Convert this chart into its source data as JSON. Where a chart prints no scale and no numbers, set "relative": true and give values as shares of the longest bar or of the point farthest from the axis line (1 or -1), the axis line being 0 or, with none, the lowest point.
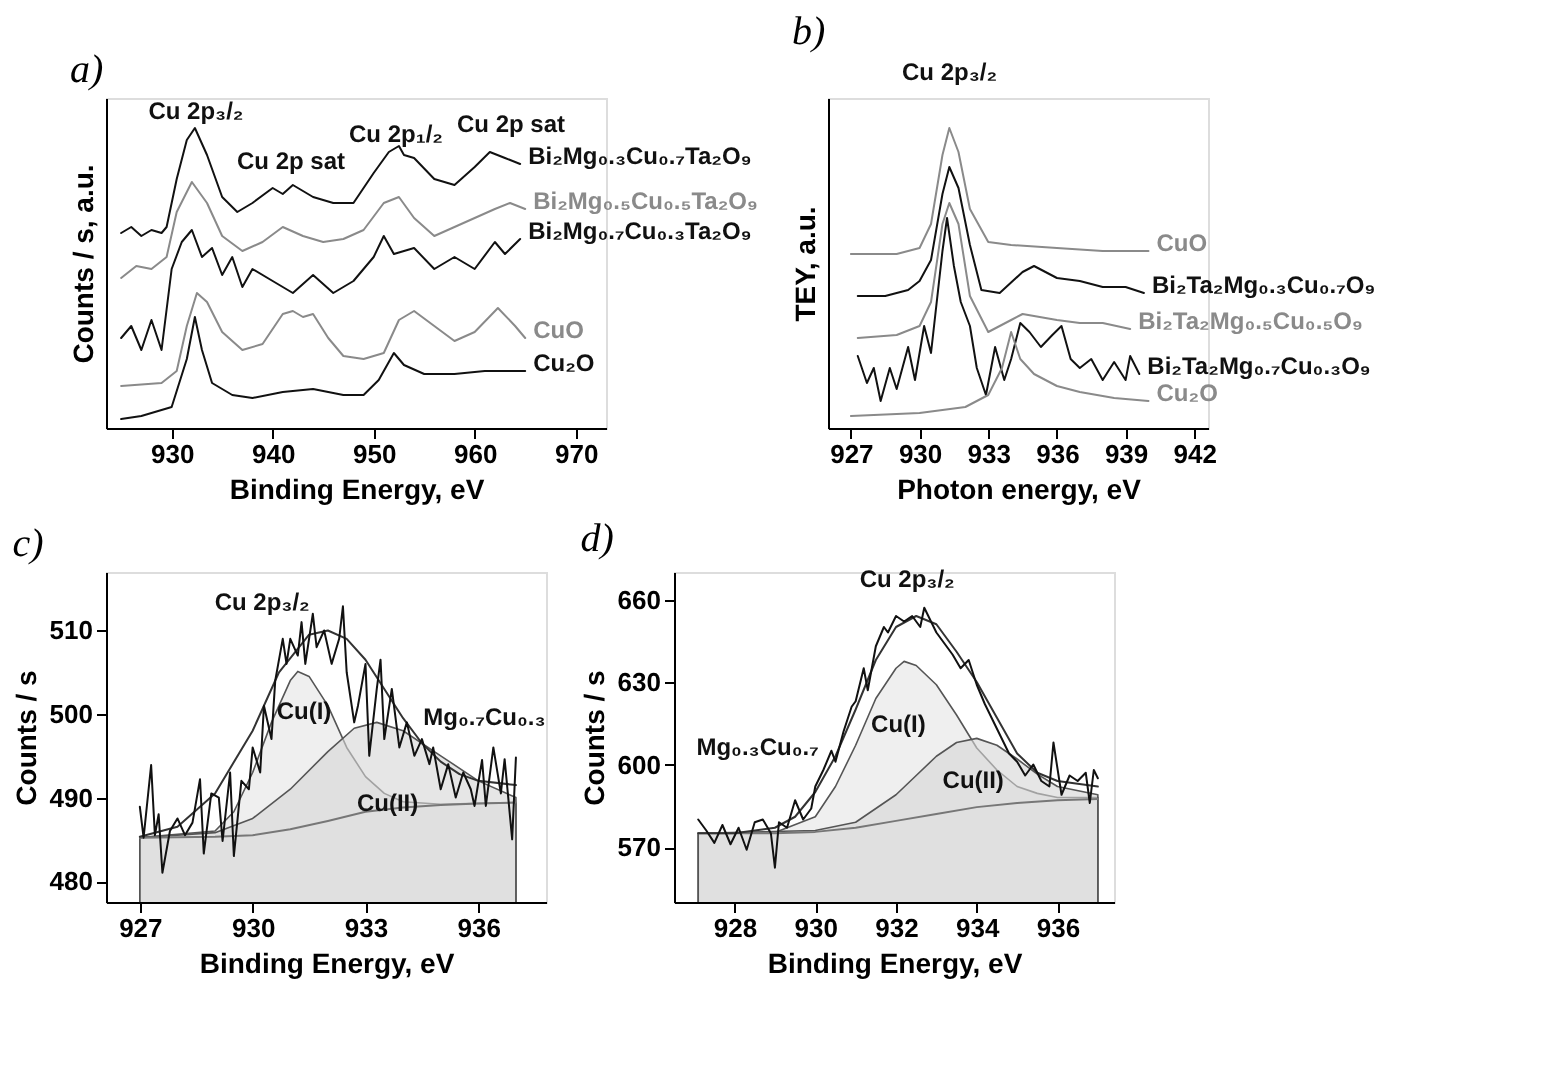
{
  "chart_data": [
    {
      "type": "line",
      "title": "a)",
      "xlabel": "Binding Energy, eV",
      "ylabel": "Counts / s, a.u.",
      "relative": true,
      "xlim": [
        923.5,
        973
      ],
      "xticks": [
        930,
        940,
        950,
        960,
        970
      ],
      "series": [
        {
          "name": "Bi₂Mg₀.₃Cu₀.₇Ta₂O₉",
          "color": "#111111",
          "x": [
            925,
            926,
            927,
            928,
            929,
            929.5,
            930.5,
            931.5,
            932.3,
            933.5,
            935,
            936.5,
            938,
            940,
            941,
            942,
            943,
            944,
            946,
            948,
            950,
            951.5,
            952.5,
            953,
            954,
            956,
            958,
            960,
            961.5,
            963,
            964.5
          ],
          "values": [
            0.65,
            0.67,
            0.64,
            0.66,
            0.65,
            0.67,
            0.83,
            0.96,
            1.0,
            0.91,
            0.77,
            0.72,
            0.75,
            0.8,
            0.78,
            0.81,
            0.79,
            0.77,
            0.75,
            0.75,
            0.85,
            0.92,
            0.94,
            0.91,
            0.9,
            0.83,
            0.81,
            0.87,
            0.92,
            0.9,
            0.88
          ]
        },
        {
          "name": "Bi₂Mg₀.₅Cu₀.₅Ta₂O₉",
          "color": "#8a8a8a",
          "x": [
            925,
            926.5,
            928,
            929.5,
            930.5,
            932,
            933.5,
            935,
            937,
            939,
            941,
            943,
            945,
            947,
            949,
            951,
            952.5,
            954,
            956,
            958,
            960,
            962,
            963.5,
            965
          ],
          "values": [
            0.5,
            0.54,
            0.53,
            0.57,
            0.72,
            0.82,
            0.75,
            0.64,
            0.59,
            0.62,
            0.67,
            0.64,
            0.62,
            0.63,
            0.66,
            0.75,
            0.77,
            0.7,
            0.64,
            0.67,
            0.7,
            0.73,
            0.75,
            0.73
          ]
        },
        {
          "name": "Bi₂Mg₀.₇Cu₀.₃Ta₂O₉",
          "color": "#111111",
          "x": [
            925,
            926,
            927,
            928,
            929,
            930,
            931,
            932,
            933,
            934,
            935,
            936,
            937,
            938,
            940,
            942,
            944,
            946,
            948,
            950,
            951,
            952,
            954,
            956,
            958,
            960,
            962,
            963,
            964.5
          ],
          "values": [
            0.3,
            0.34,
            0.26,
            0.36,
            0.26,
            0.53,
            0.62,
            0.66,
            0.57,
            0.6,
            0.51,
            0.57,
            0.47,
            0.53,
            0.49,
            0.45,
            0.51,
            0.45,
            0.49,
            0.57,
            0.64,
            0.58,
            0.6,
            0.53,
            0.57,
            0.53,
            0.62,
            0.58,
            0.63
          ]
        },
        {
          "name": "CuO",
          "color": "#8a8a8a",
          "x": [
            925,
            929,
            930.5,
            931.5,
            932.5,
            933.5,
            935,
            937,
            939,
            941,
            942,
            943,
            944,
            945.5,
            947,
            949,
            951,
            952.5,
            954,
            956,
            958,
            960,
            962.3,
            964,
            965
          ],
          "values": [
            0.14,
            0.15,
            0.19,
            0.34,
            0.45,
            0.42,
            0.32,
            0.26,
            0.28,
            0.38,
            0.39,
            0.37,
            0.38,
            0.3,
            0.24,
            0.23,
            0.25,
            0.36,
            0.39,
            0.34,
            0.29,
            0.32,
            0.4,
            0.34,
            0.3
          ]
        },
        {
          "name": "Cu₂O",
          "color": "#111111",
          "x": [
            925,
            927,
            930,
            931.5,
            932.3,
            933,
            934,
            936,
            938,
            941,
            944,
            947,
            949,
            950.5,
            952,
            953,
            955,
            958,
            961,
            965
          ],
          "values": [
            0.03,
            0.04,
            0.07,
            0.23,
            0.37,
            0.26,
            0.15,
            0.11,
            0.1,
            0.12,
            0.13,
            0.11,
            0.11,
            0.16,
            0.25,
            0.21,
            0.18,
            0.18,
            0.19,
            0.19
          ]
        }
      ],
      "annotations": [
        "Cu 2p₃/₂",
        "Cu 2p sat",
        "Cu 2p₁/₂",
        "Cu 2p sat"
      ]
    },
    {
      "type": "line",
      "title": "b)",
      "xlabel": "Photon energy, eV",
      "ylabel": "TEY, a.u.",
      "relative": true,
      "xlim": [
        926,
        942.6
      ],
      "xticks": [
        927,
        930,
        933,
        936,
        939,
        942
      ],
      "series": [
        {
          "name": "CuO",
          "color": "#8a8a8a",
          "x": [
            927,
            929,
            930,
            930.5,
            931,
            931.3,
            931.7,
            932.2,
            933,
            934,
            936,
            938,
            940
          ],
          "values": [
            0.58,
            0.58,
            0.6,
            0.68,
            0.91,
            1.0,
            0.92,
            0.73,
            0.62,
            0.61,
            0.6,
            0.59,
            0.59
          ]
        },
        {
          "name": "Bi₂Ta₂Mg₀.₃Cu₀.₇O₉",
          "color": "#111111",
          "x": [
            927.3,
            928.5,
            929.5,
            930,
            930.5,
            931,
            931.3,
            931.7,
            932.2,
            932.7,
            933.5,
            934.5,
            935,
            936,
            937,
            938,
            939,
            939.8
          ],
          "values": [
            0.44,
            0.44,
            0.46,
            0.49,
            0.56,
            0.78,
            0.87,
            0.8,
            0.61,
            0.46,
            0.45,
            0.52,
            0.54,
            0.5,
            0.49,
            0.47,
            0.47,
            0.45
          ]
        },
        {
          "name": "Bi₂Ta₂Mg₀.₅Cu₀.₅O₉",
          "color": "#8a8a8a",
          "x": [
            927.3,
            929,
            930,
            930.5,
            931,
            931.3,
            931.7,
            932.2,
            933,
            934,
            934.5,
            936,
            937,
            938,
            939.2
          ],
          "values": [
            0.3,
            0.31,
            0.34,
            0.42,
            0.68,
            0.75,
            0.68,
            0.44,
            0.32,
            0.36,
            0.38,
            0.36,
            0.35,
            0.35,
            0.33
          ]
        },
        {
          "name": "Bi₂Ta₂Mg₀.₇Cu₀.₃O₉",
          "color": "#111111",
          "x": [
            927.3,
            927.7,
            928,
            928.3,
            928.7,
            929,
            929.5,
            929.8,
            930.2,
            930.5,
            931,
            931.2,
            931.5,
            931.8,
            932.2,
            932.5,
            932.9,
            933.3,
            933.7,
            934,
            934.4,
            934.8,
            935.3,
            935.8,
            936.2,
            936.6,
            937,
            937.5,
            938,
            938.5,
            939,
            939.2,
            939.6
          ],
          "values": [
            0.24,
            0.15,
            0.2,
            0.09,
            0.2,
            0.13,
            0.27,
            0.16,
            0.34,
            0.25,
            0.59,
            0.7,
            0.54,
            0.42,
            0.34,
            0.2,
            0.11,
            0.27,
            0.16,
            0.23,
            0.35,
            0.32,
            0.27,
            0.31,
            0.34,
            0.23,
            0.2,
            0.23,
            0.16,
            0.22,
            0.16,
            0.24,
            0.18
          ]
        },
        {
          "name": "Cu₂O",
          "color": "#8a8a8a",
          "x": [
            927,
            930,
            932,
            933,
            933.6,
            934,
            934.4,
            935,
            936,
            937,
            938.5,
            940
          ],
          "values": [
            0.04,
            0.05,
            0.07,
            0.11,
            0.2,
            0.32,
            0.23,
            0.18,
            0.14,
            0.12,
            0.1,
            0.09
          ]
        }
      ],
      "annotations": [
        "Cu 2p₃/₂"
      ]
    },
    {
      "type": "line",
      "title": "c)",
      "xlabel": "Binding Energy, eV",
      "ylabel": "Counts / s",
      "xlim": [
        926.1,
        937.8
      ],
      "xticks": [
        927,
        930,
        933,
        936
      ],
      "ylim": [
        477.5,
        517
      ],
      "yticks": [
        480,
        490,
        500,
        510
      ],
      "series": [
        {
          "type": "area",
          "color": "#efefef",
          "x": [
            927,
            929,
            929.5,
            930,
            930.5,
            931,
            931.2,
            931.5,
            932,
            932.5,
            933,
            933.5,
            934,
            935,
            936,
            937
          ],
          "values": [
            485.2,
            486,
            488.3,
            493,
            499,
            504,
            505.1,
            504.5,
            501,
            496,
            492.5,
            490.5,
            489.5,
            489.2,
            489.3,
            489.4
          ]
        },
        {
          "type": "area",
          "color": "#d6d6d6",
          "x": [
            927,
            929,
            930,
            931,
            932,
            932.7,
            933.3,
            934,
            935,
            936,
            937
          ],
          "values": [
            485.2,
            485.8,
            487.5,
            491,
            495.5,
            498.3,
            499,
            498,
            495,
            492,
            490
          ]
        },
        {
          "color": "#777777",
          "x": [
            927,
            929,
            930,
            931,
            932,
            933,
            934,
            935,
            936,
            937
          ],
          "values": [
            485.2,
            485.3,
            485.5,
            486.2,
            487.2,
            488.3,
            488.8,
            489.1,
            489.3,
            489.4
          ]
        },
        {
          "color": "#333333",
          "x": [
            927,
            928,
            929,
            930,
            930.7,
            931.5,
            932,
            932.5,
            933,
            933.5,
            934,
            934.5,
            935,
            935.5,
            936,
            937
          ],
          "values": [
            485.3,
            486.5,
            490.5,
            498,
            505,
            509.5,
            510,
            509,
            506.5,
            503,
            499.5,
            496.5,
            494.3,
            492.8,
            492,
            491.5
          ]
        },
        {
          "color": "#111111",
          "x": [
            927.0,
            927.1,
            927.3,
            927.4,
            927.5,
            927.6,
            927.8,
            928.0,
            928.2,
            928.4,
            928.6,
            928.7,
            928.9,
            929.1,
            929.2,
            929.4,
            929.5,
            929.7,
            929.9,
            930.0,
            930.2,
            930.3,
            930.5,
            930.6,
            930.8,
            930.9,
            931.0,
            931.2,
            931.3,
            931.4,
            931.6,
            931.7,
            931.9,
            932.1,
            932.3,
            932.4,
            932.5,
            932.7,
            932.8,
            933.0,
            933.1,
            933.3,
            933.4,
            933.5,
            933.7,
            933.9,
            934.1,
            934.3,
            934.5,
            934.7,
            934.8,
            935.0,
            935.2,
            935.4,
            935.6,
            935.8,
            935.9,
            936.1,
            936.2,
            936.4,
            936.6,
            936.7,
            936.9,
            937.0
          ],
          "values": [
            488.9,
            485.2,
            493.9,
            485.5,
            488,
            481,
            486,
            487.5,
            485.5,
            487,
            492.2,
            483.3,
            490.5,
            490,
            484.8,
            493,
            483,
            492,
            491,
            496,
            493,
            501,
            497,
            504,
            509,
            506,
            509,
            507,
            511,
            506,
            512,
            508,
            510,
            506,
            509,
            512.9,
            505,
            499,
            501,
            506,
            495,
            503,
            506.5,
            497,
            503,
            496,
            499,
            495,
            497,
            494,
            496,
            491,
            494,
            490,
            493,
            491,
            489,
            494.5,
            489,
            496,
            490.5,
            494.6,
            485,
            494.8
          ]
        }
      ],
      "annotations": [
        "Cu 2p₃/₂",
        "Cu(I)",
        "Cu(II)",
        "Mg₀.₇Cu₀.₃"
      ]
    },
    {
      "type": "line",
      "title": "d)",
      "xlabel": "Binding Energy, eV",
      "ylabel": "Counts / s",
      "xlim": [
        926.5,
        937.4
      ],
      "xticks": [
        928,
        930,
        932,
        934,
        936
      ],
      "ylim": [
        550,
        670
      ],
      "yticks": [
        570,
        600,
        630,
        660
      ],
      "series": [
        {
          "type": "area",
          "color": "#efefef",
          "x": [
            927.1,
            929,
            930,
            930.5,
            931,
            931.5,
            932,
            932.2,
            932.5,
            933,
            933.5,
            934,
            934.5,
            935,
            935.5,
            936,
            937
          ],
          "values": [
            575,
            575.3,
            581,
            592,
            607,
            624,
            635,
            637.5,
            636,
            629,
            618,
            606,
            598,
            592,
            589.5,
            588,
            588
          ]
        },
        {
          "type": "area",
          "color": "#d6d6d6",
          "x": [
            927.1,
            930,
            931,
            932,
            932.5,
            933,
            933.5,
            934,
            934.5,
            935,
            935.5,
            936,
            937
          ],
          "values": [
            575,
            576,
            579,
            589,
            596,
            603,
            608,
            609.5,
            607,
            602,
            596.5,
            592,
            589
          ]
        },
        {
          "color": "#777777",
          "x": [
            927.1,
            929,
            930,
            931,
            932,
            933,
            934,
            935,
            936,
            937
          ],
          "values": [
            575,
            575,
            575.5,
            577,
            579.5,
            582,
            584.5,
            586,
            587,
            587.5
          ]
        },
        {
          "color": "#333333",
          "x": [
            927.1,
            928,
            929,
            929.5,
            930,
            930.5,
            931,
            931.5,
            932,
            932.5,
            933,
            933.5,
            934,
            934.5,
            935,
            935.5,
            936,
            937
          ],
          "values": [
            575,
            575,
            577,
            581,
            590,
            603,
            620,
            638,
            650,
            654,
            651,
            641,
            630,
            617,
            604,
            597,
            594,
            592
          ]
        },
        {
          "color": "#111111",
          "x": [
            927.1,
            927.3,
            927.5,
            927.7,
            927.9,
            928.1,
            928.3,
            928.5,
            928.7,
            928.9,
            929.0,
            929.1,
            929.3,
            929.5,
            929.7,
            929.9,
            930.0,
            930.2,
            930.4,
            930.5,
            930.7,
            930.9,
            931.0,
            931.2,
            931.3,
            931.5,
            931.7,
            931.8,
            932.0,
            932.2,
            932.4,
            932.6,
            932.7,
            932.9,
            933.0,
            933.2,
            933.4,
            933.6,
            933.8,
            934.0,
            934.2,
            934.4,
            934.6,
            934.8,
            935.0,
            935.2,
            935.4,
            935.6,
            935.8,
            935.9,
            936.1,
            936.3,
            936.5,
            936.7,
            936.8,
            936.9,
            937.0
          ],
          "values": [
            580,
            576,
            571.5,
            578,
            571,
            577,
            569,
            579,
            580,
            575,
            562.5,
            579,
            577,
            587,
            580,
            584,
            592,
            598,
            605,
            601,
            612,
            621,
            623,
            635,
            627,
            643,
            650,
            648,
            654,
            652,
            654,
            650,
            657,
            651,
            648,
            644,
            640,
            635,
            638,
            629,
            622,
            616,
            610,
            604,
            601,
            596,
            600,
            594,
            592,
            608,
            589,
            596,
            594,
            597,
            586,
            598,
            595
          ]
        }
      ],
      "annotations": [
        "Cu 2p₃/₂",
        "Cu(I)",
        "Cu(II)",
        "Mg₀.₃Cu₀.₇"
      ]
    }
  ]
}
